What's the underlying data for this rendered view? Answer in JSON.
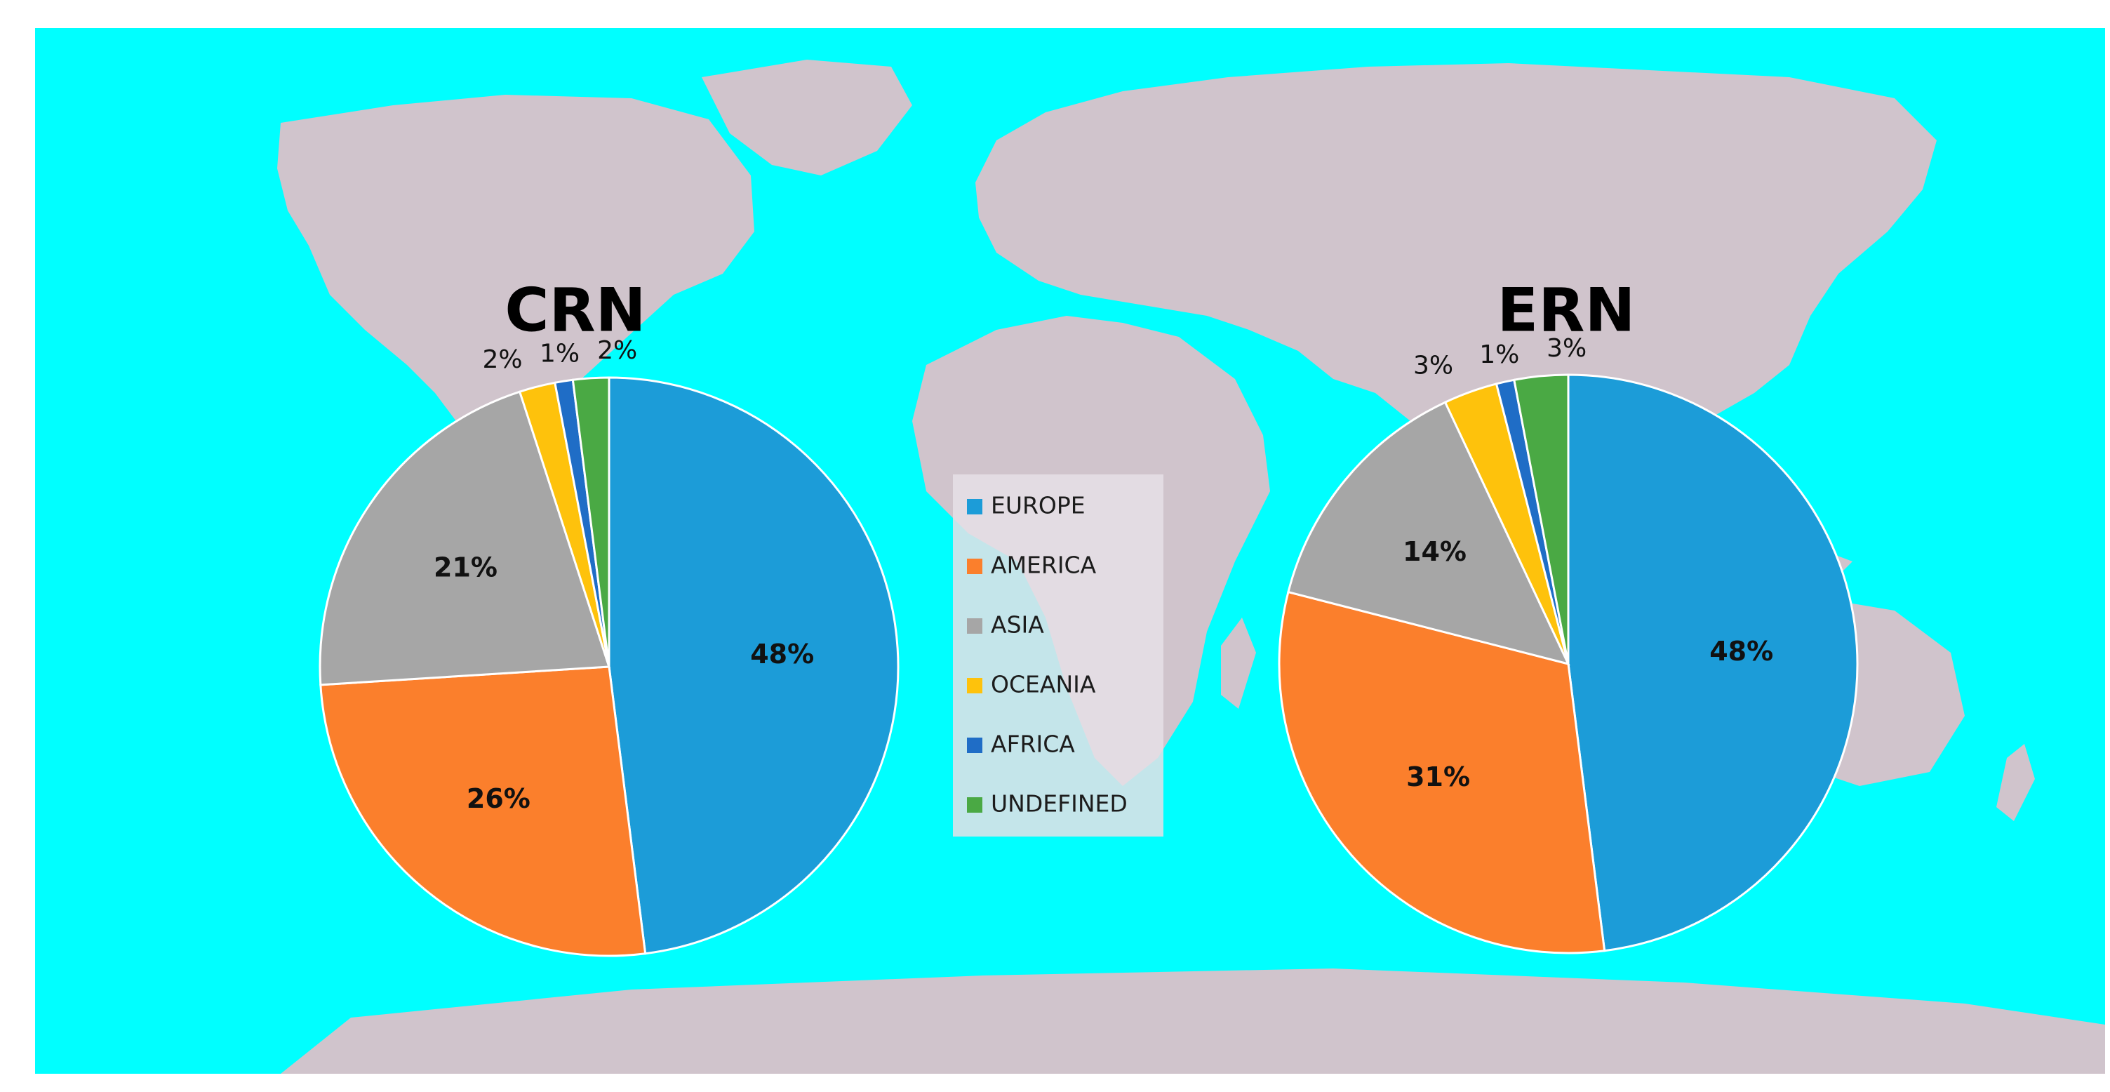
{
  "chart_data": {
    "type": "pie",
    "categories": [
      "EUROPE",
      "AMERICA",
      "ASIA",
      "OCEANIA",
      "AFRICA",
      "UNDEFINED"
    ],
    "colors": [
      "#1c9cd8",
      "#fb7f2c",
      "#a6a6a6",
      "#fec20c",
      "#1f6dc6",
      "#4aa944"
    ],
    "label_style": [
      "inside",
      "inside",
      "inside",
      "outside",
      "outside",
      "outside"
    ],
    "charts": [
      {
        "title": "CRN",
        "values": [
          48,
          26,
          21,
          2,
          1,
          2
        ],
        "labels": [
          "48%",
          "26%",
          "21%",
          "2%",
          "1%",
          "2%"
        ]
      },
      {
        "title": "ERN",
        "values": [
          48,
          31,
          14,
          3,
          1,
          3
        ],
        "labels": [
          "48%",
          "31%",
          "14%",
          "3%",
          "1%",
          "3%"
        ]
      }
    ],
    "legend": {
      "placement": "center",
      "entries": [
        "EUROPE",
        "AMERICA",
        "ASIA",
        "OCEANIA",
        "AFRICA",
        "UNDEFINED"
      ]
    },
    "background": {
      "ocean_color": "#00ffff",
      "land_color": "#d0c4cc"
    }
  }
}
